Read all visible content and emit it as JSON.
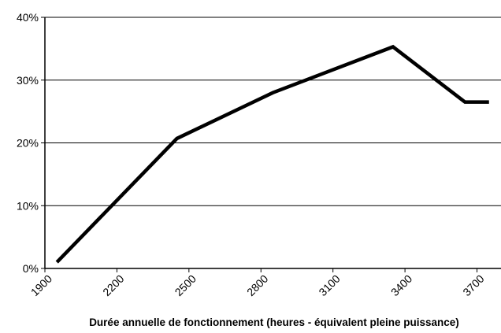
{
  "chart_data": {
    "type": "line",
    "xlabel": "Durée annuelle de fonctionnement (heures - équivalent pleine puissance)",
    "x": [
      1950,
      2450,
      2850,
      3350,
      3650,
      3750
    ],
    "series": [
      {
        "color": "#000000",
        "values": [
          1,
          20.7,
          28,
          35.3,
          26.5,
          26.5
        ]
      }
    ],
    "xlim": [
      1900,
      3800
    ],
    "xticks": [
      1900,
      2200,
      2500,
      2800,
      3100,
      3400,
      3700
    ],
    "ylim": [
      0,
      40
    ],
    "yticks": [
      {
        "value": 0,
        "label": "0%"
      },
      {
        "value": 10,
        "label": "10%"
      },
      {
        "value": 20,
        "label": "20%"
      },
      {
        "value": 30,
        "label": "30%"
      },
      {
        "value": 40,
        "label": "40%"
      }
    ],
    "grid": true
  }
}
